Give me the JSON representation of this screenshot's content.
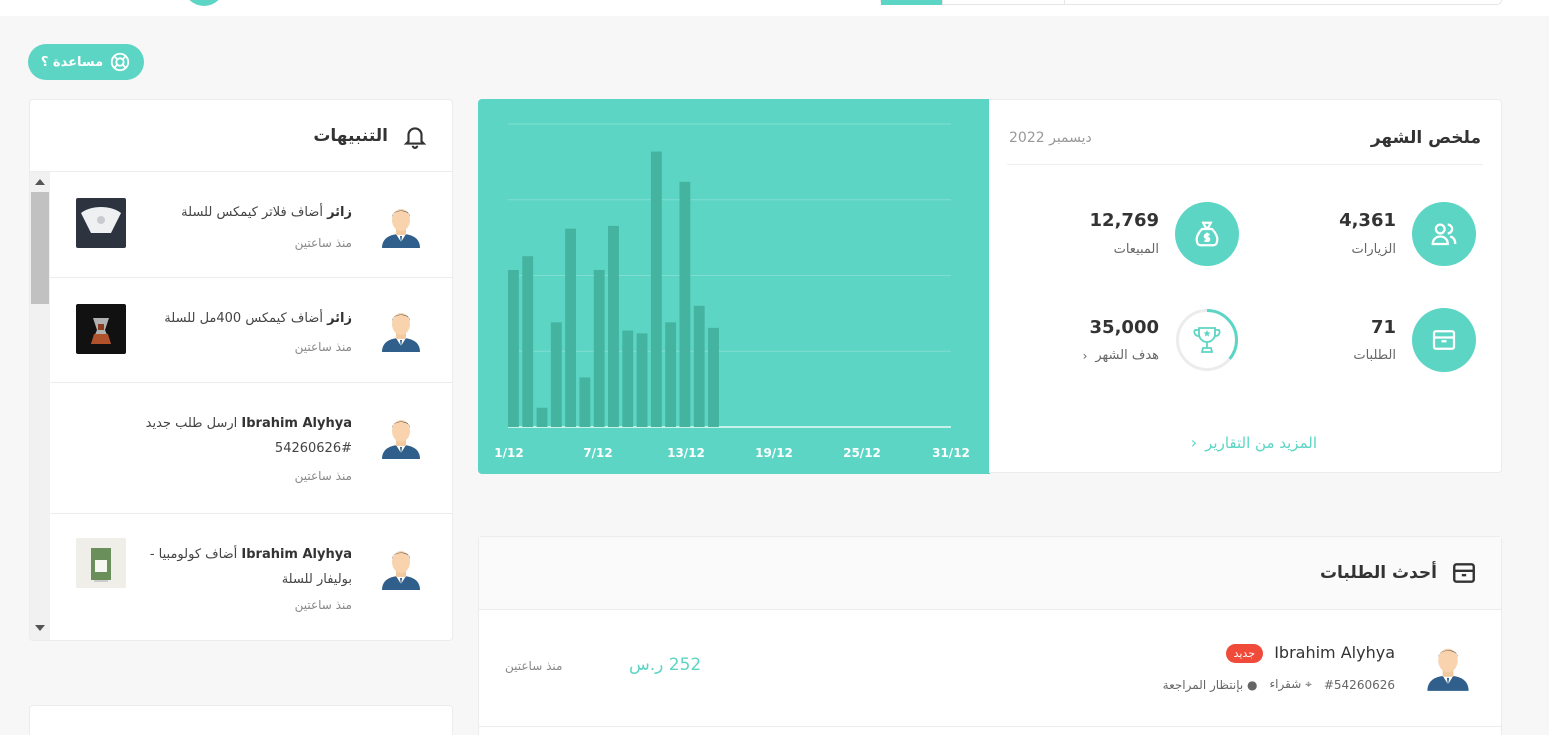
{
  "help": {
    "label": "مساعدة ؟"
  },
  "alerts": {
    "title": "التنبيهات",
    "items": [
      {
        "actor": "زائر",
        "text": "أضاف فلاتر كيمكس للسلة",
        "time": "منذ ساعتين"
      },
      {
        "actor": "زائر",
        "text": "أضاف كيمكس 400مل للسلة",
        "time": "منذ ساعتين"
      },
      {
        "actor": "Ibrahim Alyhya",
        "text": "ارسل طلب جديد #54260626",
        "time": "منذ ساعتين"
      },
      {
        "actor": "Ibrahim Alyhya",
        "text": "أضاف كولومبيا - بوليفار للسلة",
        "time": "منذ ساعتين"
      }
    ]
  },
  "summary": {
    "title": "ملخص الشهر",
    "date": "ديسمبر 2022",
    "visits": {
      "value": "4,361",
      "label": "الزيارات"
    },
    "sales": {
      "value": "12,769",
      "label": "المبيعات"
    },
    "orders": {
      "value": "71",
      "label": "الطلبات"
    },
    "goal": {
      "value": "35,000",
      "label": "هدف الشهر",
      "progress": 0.36
    },
    "more_link": "المزيد من التقارير"
  },
  "chart_data": {
    "type": "bar",
    "x_ticks": [
      "1/12",
      "7/12",
      "13/12",
      "19/12",
      "25/12",
      "31/12"
    ],
    "categories": [
      "1/12",
      "2/12",
      "3/12",
      "4/12",
      "5/12",
      "6/12",
      "7/12",
      "8/12",
      "9/12",
      "10/12",
      "11/12",
      "12/12",
      "13/12",
      "14/12",
      "15/12",
      "16/12",
      "17/12",
      "18/12",
      "19/12",
      "20/12",
      "21/12",
      "22/12",
      "23/12",
      "24/12",
      "25/12",
      "26/12",
      "27/12",
      "28/12",
      "29/12",
      "30/12",
      "31/12"
    ],
    "values": [
      0.57,
      0.62,
      0.07,
      0.38,
      0.72,
      0.18,
      0.57,
      0.73,
      0.35,
      0.34,
      1.0,
      0.38,
      0.89,
      0.44,
      0.36,
      0,
      0,
      0,
      0,
      0,
      0,
      0,
      0,
      0,
      0,
      0,
      0,
      0,
      0,
      0,
      0
    ],
    "ylim": [
      0,
      1.1
    ],
    "grid": true
  },
  "orders": {
    "title": "أحدث الطلبات",
    "rows": [
      {
        "name": "Ibrahim Alyhya",
        "badge": "جديد",
        "number": "#54260626",
        "city": "شقراء",
        "status": "بإنتظار المراجعة",
        "amount": "252 ر.س",
        "time": "منذ ساعتين"
      }
    ]
  },
  "colors": {
    "accent": "#5dd5c4",
    "bar": "#44b3a0",
    "badge": "#ef4a3a"
  }
}
